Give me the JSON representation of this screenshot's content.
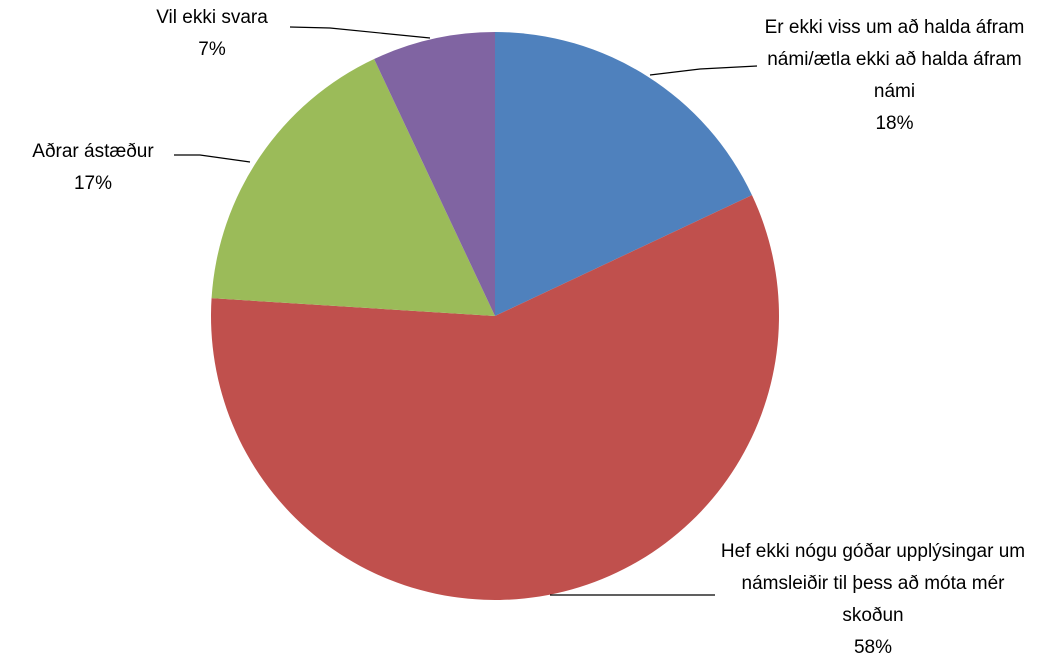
{
  "chart_data": {
    "type": "pie",
    "categories": [
      "Er ekki viss um að halda áfram námi/ætla ekki að halda áfram námi",
      "Hef ekki nógu góðar upplýsingar um námsleiðir til þess að móta mér skoðun",
      "Aðrar ástæður",
      "Vil ekki svara"
    ],
    "values": [
      18,
      58,
      17,
      7
    ],
    "value_labels": [
      "18%",
      "58%",
      "17%",
      "7%"
    ],
    "colors": [
      "#4f81bd",
      "#c0504d",
      "#9bbb59",
      "#8064a2"
    ]
  }
}
